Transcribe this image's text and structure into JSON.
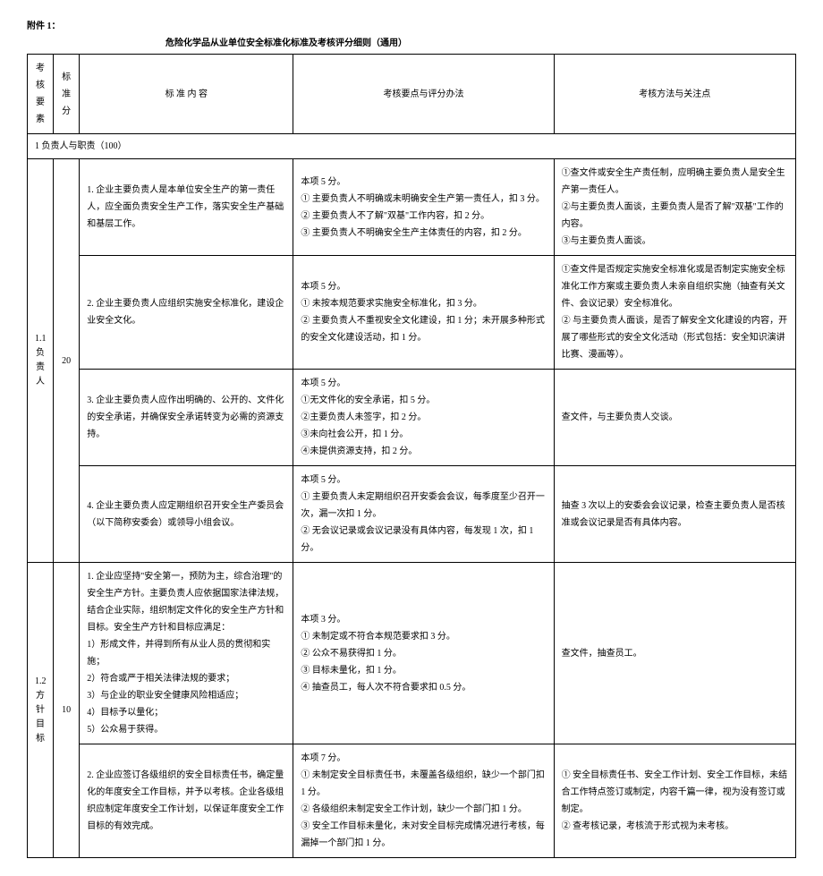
{
  "attachment_label": "附件 1：",
  "doc_title": "危险化学品从业单位安全标准化标准及考核评分细则（通用）",
  "headers": {
    "element": "考 核 要 素",
    "score": "标准 分",
    "content": "标 准 内 容",
    "points": "考核要点与评分办法",
    "method": "考核方法与关注点"
  },
  "section1_header": "1 负责人与职责（100）",
  "group_1_1": {
    "label_code": "1.1",
    "label_name": "负责人",
    "label_combined_l1": "1.1",
    "label_combined_l2": "负责",
    "label_combined_l3": "人",
    "score": "20"
  },
  "row1": {
    "content": "1. 企业主要负责人是本单位安全生产的第一责任人，应全面负责安全生产工作，落实安全生产基础和基层工作。",
    "points": "本项 5 分。\n① 主要负责人不明确或未明确安全生产第一责任人，扣 3 分。\n② 主要负责人不了解\"双基\"工作内容，扣 2 分。\n③ 主要负责人不明确安全生产主体责任的内容，扣 2 分。",
    "method": "①查文件或安全生产责任制，应明确主要负责人是安全生产第一责任人。\n②与主要负责人面谈，主要负责人是否了解\"双基\"工作的内容。\n③与主要负责人面谈。"
  },
  "row2": {
    "content": "2. 企业主要负责人应组织实施安全标准化，建设企业安全文化。",
    "points": "本项 5 分。\n① 未按本规范要求实施安全标准化，扣 3 分。\n② 主要负责人不重视安全文化建设，扣 1 分；未开展多种形式的安全文化建设活动，扣 1 分。",
    "method": "①查文件是否规定实施安全标准化或是否制定实施安全标准化工作方案或主要负责人未亲自组织实施（抽查有关文件、会议记录）安全标准化。\n② 与主要负责人面谈，是否了解安全文化建设的内容，开展了哪些形式的安全文化活动（形式包括：安全知识演讲比赛、漫画等）。"
  },
  "row3": {
    "content": "3. 企业主要负责人应作出明确的、公开的、文件化的安全承诺，并确保安全承诺转变为必需的资源支持。",
    "points": "本项 5 分。\n①无文件化的安全承诺，扣 5 分。\n②主要负责人未签字，扣 2 分。\n③未向社会公开，扣 1 分。\n④未提供资源支持，扣 2 分。",
    "method": "查文件，与主要负责人交谈。"
  },
  "row4": {
    "content": "4. 企业主要负责人应定期组织召开安全生产委员会（以下简称安委会）或领导小组会议。",
    "points": "本项 5 分。\n① 主要负责人未定期组织召开安委会会议，每季度至少召开一次，漏一次扣 1 分。\n② 无会议记录或会议记录没有具体内容，每发现 1 次，扣 1 分。",
    "method": "抽查 3 次以上的安委会会议记录，检查主要负责人是否核准或会议记录是否有具体内容。"
  },
  "group_1_2": {
    "label_l1": "1.2",
    "label_l2": "方针",
    "label_l3": "目标",
    "score": "10"
  },
  "row5": {
    "content": "1. 企业应坚持\"安全第一，预防为主，综合治理\"的安全生产方针。主要负责人应依据国家法律法规，结合企业实际，组织制定文件化的安全生产方针和目标。安全生产方针和目标应满足：\n1）形成文件，并得到所有从业人员的贯彻和实施；\n2）符合或严于相关法律法规的要求；\n3）与企业的职业安全健康风险相适应；\n4）目标予以量化；\n5）公众易于获得。",
    "points": "本项 3 分。\n① 未制定或不符合本规范要求扣 3 分。\n② 公众不易获得扣 1 分。\n③ 目标未量化，扣 1 分。\n④ 抽查员工，每人次不符合要求扣 0.5 分。",
    "method": "查文件，抽查员工。"
  },
  "row6": {
    "content": "2. 企业应签订各级组织的安全目标责任书，确定量化的年度安全工作目标，并予以考核。企业各级组织应制定年度安全工作计划，以保证年度安全工作目标的有效完成。",
    "points": "本项 7 分。\n① 未制定安全目标责任书，未覆盖各级组织，缺少一个部门扣 1 分。\n② 各级组织未制定安全工作计划，缺少一个部门扣 1 分。\n③ 安全工作目标未量化，未对安全目标完成情况进行考核，每漏掉一个部门扣 1 分。",
    "method": "① 安全目标责任书、安全工作计划、安全工作目标，未结合工作特点签订或制定，内容千篇一律，视为没有签订或制定。\n② 查考核记录，考核流于形式视为未考核。"
  }
}
